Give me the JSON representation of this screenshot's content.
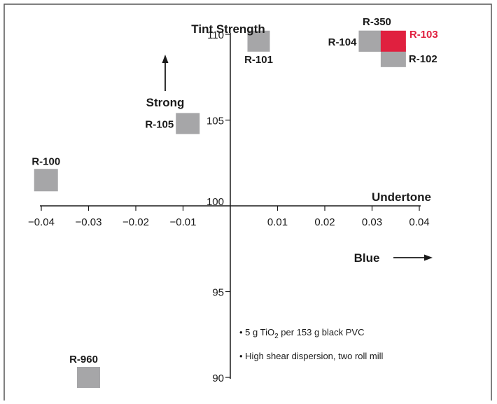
{
  "chart_data": {
    "type": "scatter",
    "title": "",
    "xlabel": "Undertone",
    "ylabel": "Tint Strength",
    "x_direction_label": "Blue",
    "y_direction_label": "Strong",
    "xlim": [
      -0.04,
      0.04
    ],
    "ylim": [
      90,
      110
    ],
    "x_ticks": [
      "-0.04",
      "-0.03",
      "-0.02",
      "-0.01",
      "0.01",
      "0.02",
      "0.03",
      "0.04"
    ],
    "y_ticks": [
      "90",
      "95",
      "100",
      "105",
      "110"
    ],
    "x_tick_values": [
      -0.04,
      -0.03,
      -0.02,
      -0.01,
      0.01,
      0.02,
      0.03,
      0.04
    ],
    "y_tick_values": [
      90,
      95,
      100,
      105,
      110
    ],
    "grid": false,
    "points": [
      {
        "name": "R-100",
        "x": -0.039,
        "y": 101.5,
        "color": "#a6a6a8"
      },
      {
        "name": "R-101",
        "x": 0.006,
        "y": 109.6,
        "color": "#a6a6a8"
      },
      {
        "name": "R-105",
        "x": -0.009,
        "y": 104.8,
        "color": "#a6a6a8"
      },
      {
        "name": "R-350",
        "x": 0.0297,
        "y": 109.6,
        "color": "#a6a6a8"
      },
      {
        "name": "R-104",
        "x": 0.0297,
        "y": 109.6,
        "color": "#a6a6a8"
      },
      {
        "name": "R-102",
        "x": 0.0345,
        "y": 108.7,
        "color": "#a6a6a8"
      },
      {
        "name": "R-103",
        "x": 0.0345,
        "y": 109.6,
        "color": "#e0203f"
      },
      {
        "name": "R-960",
        "x": -0.03,
        "y": 90.0,
        "color": "#a6a6a8"
      }
    ],
    "notes": [
      {
        "prefix": "• 5 g TiO",
        "sub": "2",
        "suffix": " per 153 g black PVC"
      },
      {
        "prefix": "• High shear dispersion, two roll mill",
        "sub": "",
        "suffix": ""
      }
    ],
    "colors": {
      "axis": "#1a1a1a",
      "marker": "#a6a6a8",
      "highlight": "#e0203f",
      "frame": "#555555"
    }
  }
}
